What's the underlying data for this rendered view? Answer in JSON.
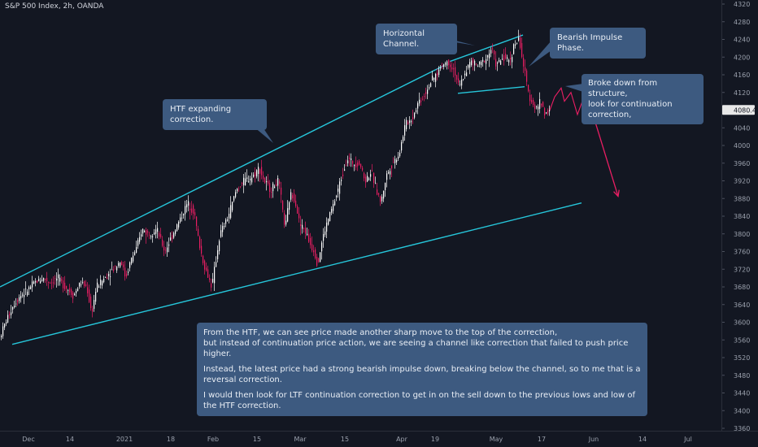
{
  "header": {
    "title": "S&P 500 Index, 2h, OANDA"
  },
  "chart_data": {
    "type": "candlestick",
    "title": "S&P 500 Index, 2h, OANDA",
    "symbol": "S&P 500 Index",
    "interval": "2h",
    "source": "OANDA",
    "ylim": [
      3360,
      4320
    ],
    "y_ticks": [
      4320,
      4280,
      4240,
      4200,
      4160,
      4120,
      4080,
      4040,
      4000,
      3960,
      3920,
      3880,
      3840,
      3800,
      3760,
      3720,
      3680,
      3640,
      3600,
      3560,
      3520,
      3480,
      3440,
      3400,
      3360
    ],
    "x_ticks": [
      "Dec",
      "14",
      "2021",
      "18",
      "Feb",
      "15",
      "Mar",
      "15",
      "Apr",
      "19",
      "May",
      "17",
      "Jun",
      "14",
      "Jul"
    ],
    "last_price": {
      "label": "4080.4",
      "value": 4080.4
    },
    "price_path": [
      [
        0,
        3560
      ],
      [
        8,
        3600
      ],
      [
        18,
        3640
      ],
      [
        26,
        3660
      ],
      [
        34,
        3670
      ],
      [
        44,
        3690
      ],
      [
        54,
        3700
      ],
      [
        64,
        3690
      ],
      [
        72,
        3700
      ],
      [
        82,
        3680
      ],
      [
        92,
        3660
      ],
      [
        100,
        3690
      ],
      [
        108,
        3680
      ],
      [
        114,
        3620
      ],
      [
        120,
        3680
      ],
      [
        130,
        3700
      ],
      [
        140,
        3720
      ],
      [
        150,
        3740
      ],
      [
        156,
        3700
      ],
      [
        162,
        3740
      ],
      [
        170,
        3770
      ],
      [
        176,
        3810
      ],
      [
        184,
        3800
      ],
      [
        194,
        3810
      ],
      [
        204,
        3760
      ],
      [
        214,
        3800
      ],
      [
        222,
        3830
      ],
      [
        232,
        3870
      ],
      [
        240,
        3850
      ],
      [
        246,
        3780
      ],
      [
        252,
        3730
      ],
      [
        258,
        3700
      ],
      [
        262,
        3680
      ],
      [
        266,
        3730
      ],
      [
        272,
        3800
      ],
      [
        282,
        3840
      ],
      [
        292,
        3900
      ],
      [
        302,
        3920
      ],
      [
        312,
        3930
      ],
      [
        320,
        3950
      ],
      [
        326,
        3920
      ],
      [
        334,
        3900
      ],
      [
        344,
        3920
      ],
      [
        352,
        3810
      ],
      [
        358,
        3890
      ],
      [
        364,
        3880
      ],
      [
        370,
        3820
      ],
      [
        376,
        3810
      ],
      [
        382,
        3780
      ],
      [
        388,
        3760
      ],
      [
        392,
        3730
      ],
      [
        398,
        3790
      ],
      [
        406,
        3840
      ],
      [
        414,
        3880
      ],
      [
        420,
        3920
      ],
      [
        428,
        3970
      ],
      [
        436,
        3960
      ],
      [
        444,
        3960
      ],
      [
        450,
        3920
      ],
      [
        458,
        3940
      ],
      [
        464,
        3900
      ],
      [
        470,
        3870
      ],
      [
        476,
        3930
      ],
      [
        484,
        3960
      ],
      [
        492,
        3980
      ],
      [
        500,
        4050
      ],
      [
        508,
        4060
      ],
      [
        516,
        4100
      ],
      [
        522,
        4110
      ],
      [
        530,
        4140
      ],
      [
        538,
        4160
      ],
      [
        544,
        4180
      ],
      [
        552,
        4190
      ],
      [
        560,
        4170
      ],
      [
        566,
        4130
      ],
      [
        572,
        4160
      ],
      [
        580,
        4190
      ],
      [
        590,
        4180
      ],
      [
        600,
        4200
      ],
      [
        606,
        4220
      ],
      [
        612,
        4180
      ],
      [
        620,
        4200
      ],
      [
        628,
        4190
      ],
      [
        634,
        4230
      ],
      [
        640,
        4240
      ],
      [
        644,
        4190
      ],
      [
        648,
        4150
      ],
      [
        652,
        4110
      ],
      [
        656,
        4100
      ],
      [
        660,
        4080
      ],
      [
        666,
        4100
      ],
      [
        672,
        4070
      ],
      [
        676,
        4080
      ]
    ],
    "projection": [
      [
        676,
        4080
      ],
      [
        682,
        4110
      ],
      [
        690,
        4130
      ],
      [
        694,
        4100
      ],
      [
        702,
        4120
      ],
      [
        710,
        4070
      ],
      [
        716,
        4100
      ],
      [
        722,
        4080
      ],
      [
        730,
        4110
      ],
      [
        734,
        4090
      ],
      [
        740,
        4070
      ]
    ],
    "levels": [
      {
        "name": "HTF expanding correction upper",
        "from": [
          0,
          3680
        ],
        "to": [
          545,
          4180
        ]
      },
      {
        "name": "HTF expanding correction lower",
        "from": [
          15,
          3550
        ],
        "to": [
          715,
          3870
        ]
      },
      {
        "name": "Horizontal channel upper",
        "from": [
          553,
          4190
        ],
        "to": [
          643,
          4250
        ]
      },
      {
        "name": "Horizontal channel lower",
        "from": [
          563,
          4118
        ],
        "to": [
          645,
          4133
        ]
      }
    ],
    "arrow": {
      "from": [
        716,
        4148
      ],
      "to": [
        760,
        3885
      ]
    },
    "annotations": [
      {
        "id": "htf",
        "text": "HTF expanding correction."
      },
      {
        "id": "channel",
        "text": "Horizontal Channel."
      },
      {
        "id": "bearish",
        "text": "Bearish Impulse Phase."
      },
      {
        "id": "broke",
        "text": "Broke down from structure,\nlook for continuation correction,"
      }
    ],
    "note": [
      "From the HTF, we can see price made another sharp move to the top of the correction,\nbut instead of continuation price action, we are seeing a channel like correction that failed to push price higher.",
      "Instead, the latest price had a strong bearish impulse down, breaking below the channel, so to me that is a reversal correction.",
      "I would then look for LTF continuation correction to get in on the sell down to the previous lows and low of the HTF correction."
    ]
  },
  "colors": {
    "background": "#131722",
    "up": "#ffffff",
    "down": "#e91e63",
    "channel": "#26c6da",
    "arrow": "#e91e63",
    "callout_bg": "#3d5a80",
    "axis_text": "#9aa0ac"
  }
}
